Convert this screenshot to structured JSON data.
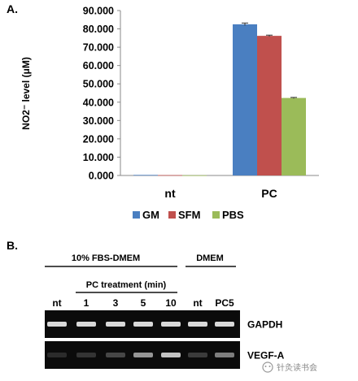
{
  "panel_a_label": "A.",
  "panel_b_label": "B.",
  "chart_data": {
    "type": "bar",
    "title": "",
    "xlabel": "",
    "ylabel": "NO2⁻ level (μM)",
    "ylim": [
      0,
      90
    ],
    "yticks": [
      "0.000",
      "10.000",
      "20.000",
      "30.000",
      "40.000",
      "50.000",
      "60.000",
      "70.000",
      "80.000",
      "90.000"
    ],
    "categories": [
      "nt",
      "PC"
    ],
    "series": [
      {
        "name": "GM",
        "color": "#4a7fc1",
        "values": [
          0.3,
          82.5
        ],
        "errors": [
          0.2,
          0.7
        ]
      },
      {
        "name": "SFM",
        "color": "#c0504d",
        "values": [
          0.2,
          76.2
        ],
        "errors": [
          0.1,
          0.4
        ]
      },
      {
        "name": "PBS",
        "color": "#9bbb59",
        "values": [
          0.1,
          42.3
        ],
        "errors": [
          0.1,
          0.3
        ]
      }
    ],
    "grid": false,
    "legend_position": "bottom"
  },
  "gel": {
    "group_label_1": "10% FBS-DMEM",
    "group_label_2": "DMEM",
    "treatment_label": "PC treatment (min)",
    "lanes": [
      "nt",
      "1",
      "3",
      "5",
      "10",
      "nt",
      "PC5"
    ],
    "rows": [
      {
        "name": "GAPDH",
        "intensities": [
          0.85,
          0.85,
          0.85,
          0.85,
          0.85,
          0.85,
          0.85
        ]
      },
      {
        "name": "VEGF-A",
        "intensities": [
          0.08,
          0.12,
          0.2,
          0.55,
          0.75,
          0.15,
          0.45
        ]
      }
    ]
  },
  "watermark": "针灸读书会"
}
